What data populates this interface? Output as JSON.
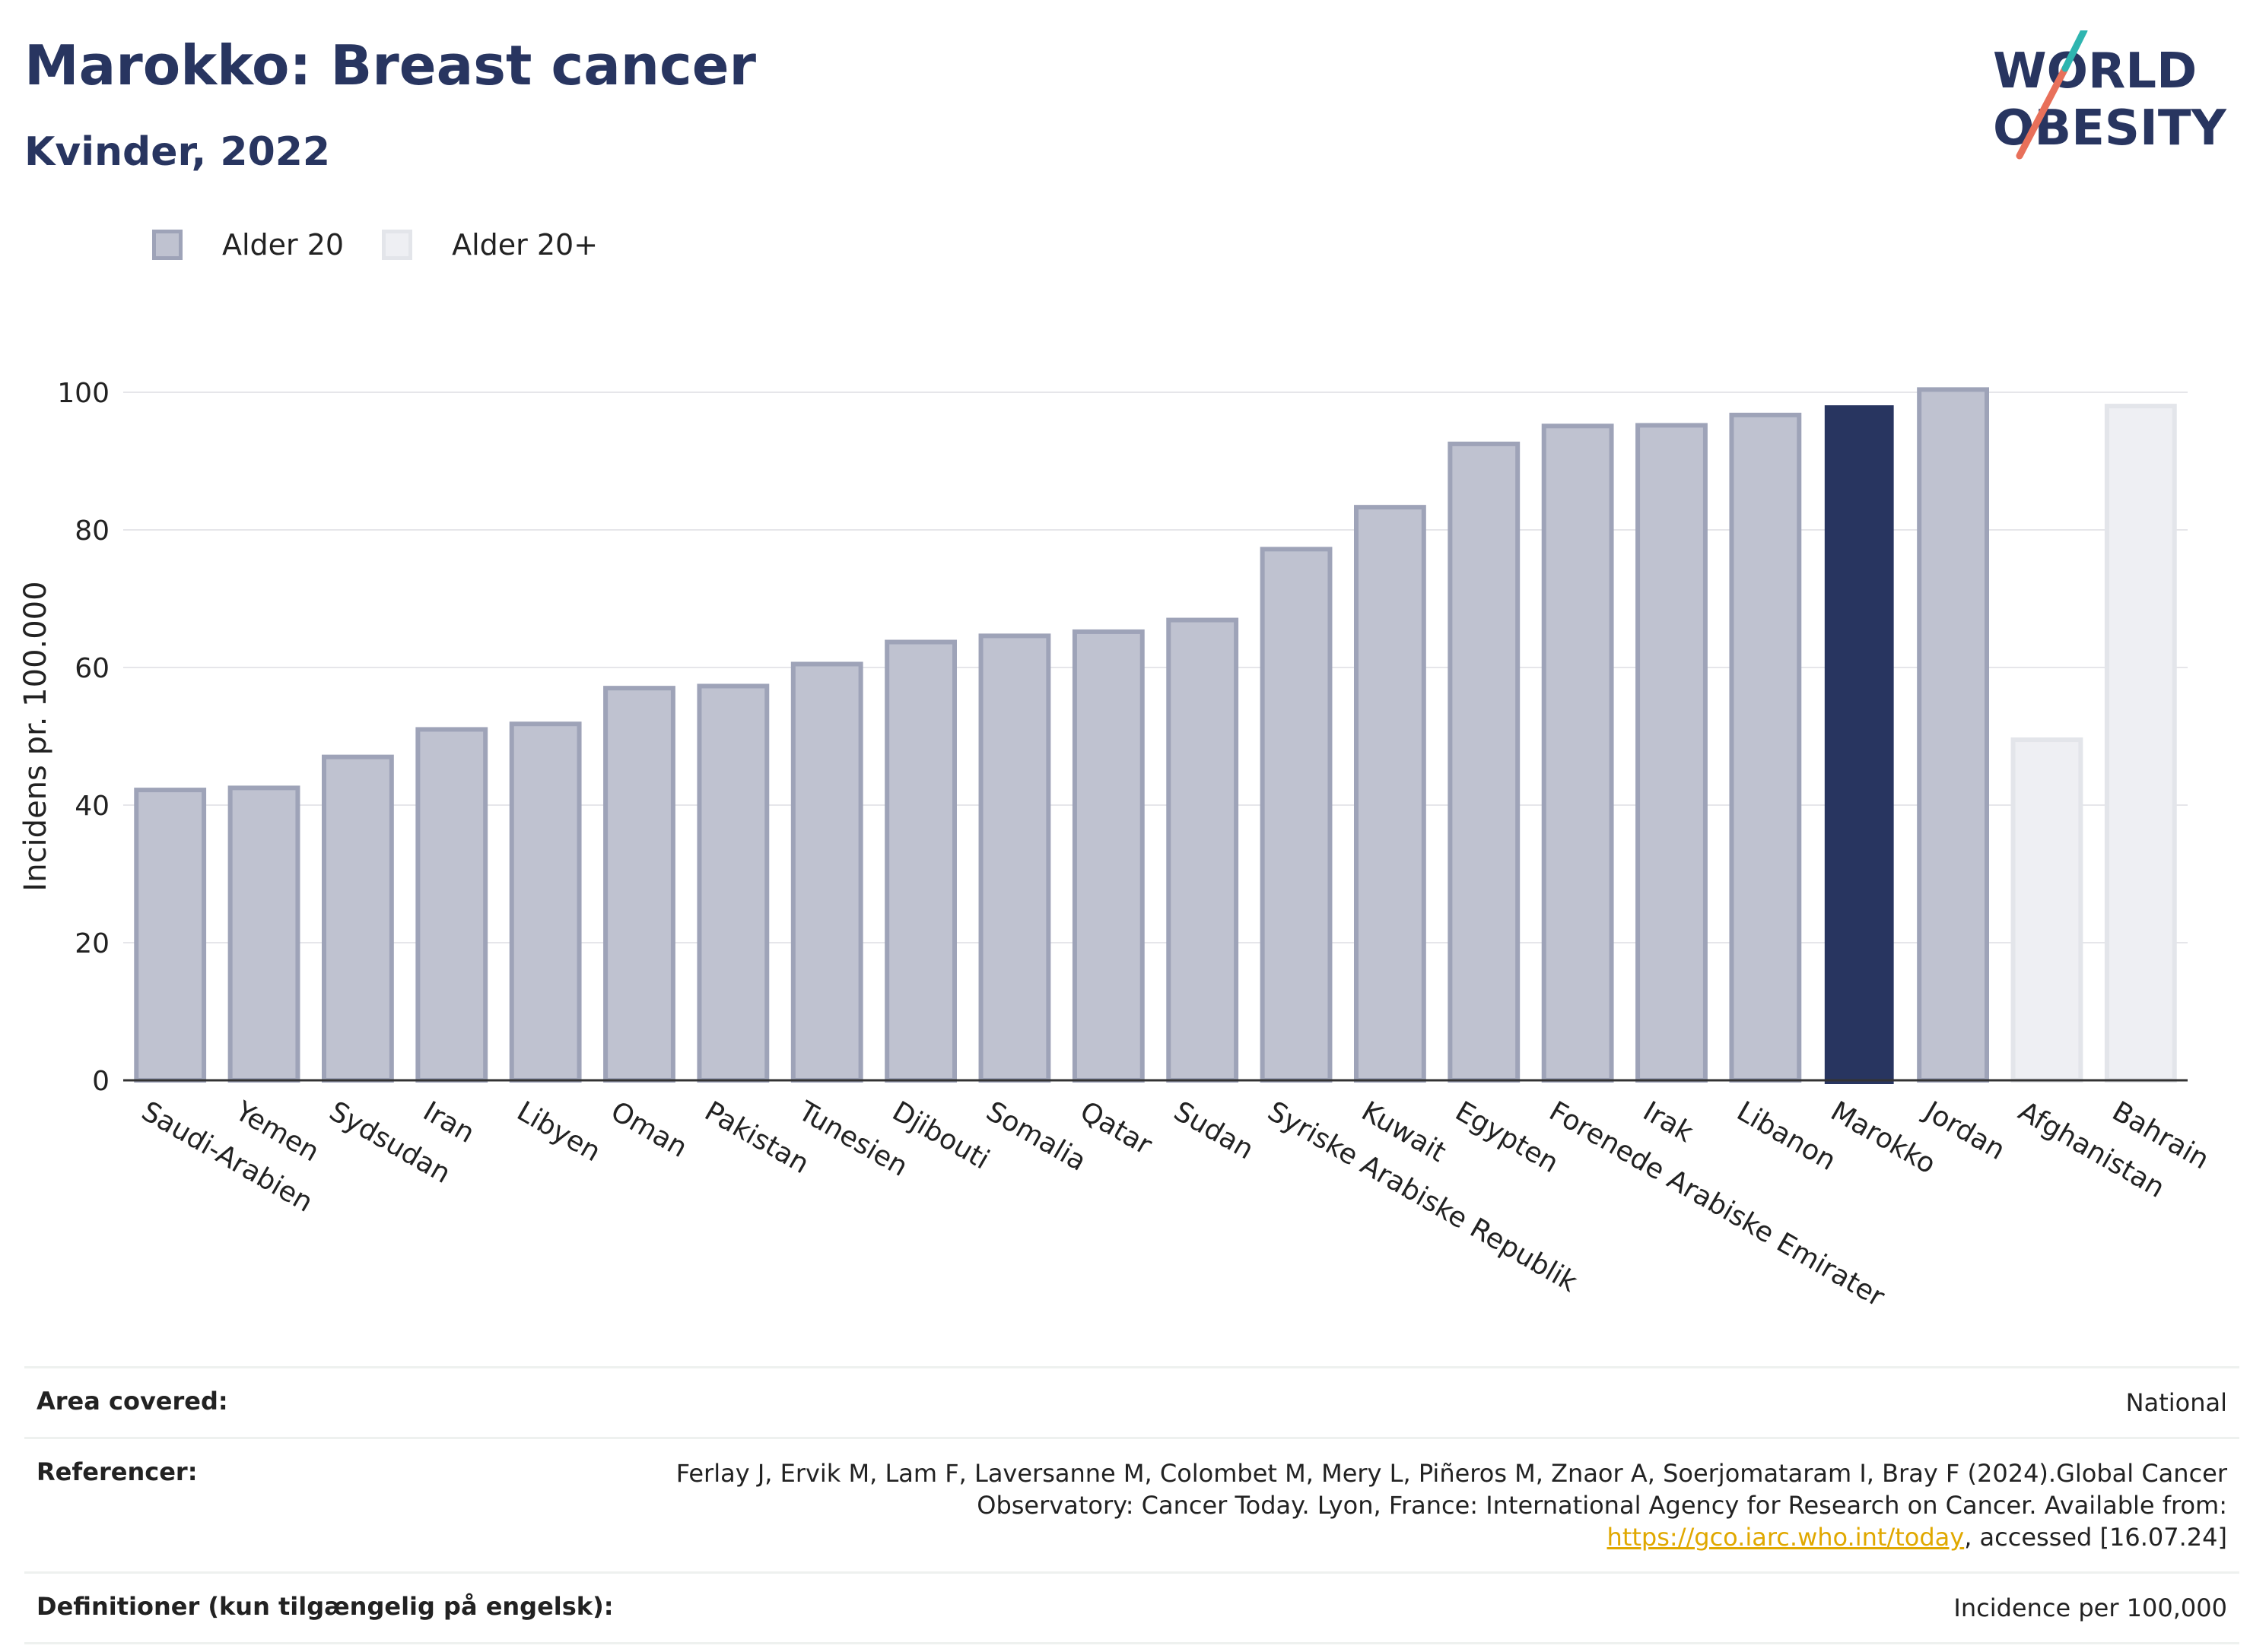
{
  "header": {
    "title": "Marokko: Breast cancer",
    "subtitle": "Kvinder, 2022",
    "logo_line1": "WORLD",
    "logo_line2": "OBESITY"
  },
  "legend": {
    "items": [
      {
        "label": "Alder 20",
        "color": "#bfc2d0"
      },
      {
        "label": "Alder 20+",
        "color": "#eeeff3"
      }
    ]
  },
  "chart_data": {
    "type": "bar",
    "ylabel": "Incidens pr. 100.000",
    "xlabel": "",
    "ylim": [
      0,
      100
    ],
    "yticks": [
      0,
      20,
      40,
      60,
      80,
      100
    ],
    "grid": true,
    "legend_position": "top-left",
    "highlight_color": "#283560",
    "categories": [
      "Saudi-Arabien",
      "Yemen",
      "Sydsudan",
      "Iran",
      "Libyen",
      "Oman",
      "Pakistan",
      "Tunesien",
      "Djibouti",
      "Somalia",
      "Qatar",
      "Sudan",
      "Syriske Arabiske Republik",
      "Kuwait",
      "Egypten",
      "Forenede Arabiske Emirater",
      "Irak",
      "Libanon",
      "Marokko",
      "Jordan",
      "Afghanistan",
      "Bahrain"
    ],
    "values": [
      42.2,
      42.5,
      47.0,
      51.0,
      51.8,
      57.0,
      57.3,
      60.5,
      63.7,
      64.6,
      65.2,
      66.9,
      77.2,
      83.3,
      92.5,
      95.1,
      95.2,
      96.7,
      98.0,
      100.4,
      49.5,
      98.0
    ],
    "series_group": [
      "Alder 20",
      "Alder 20",
      "Alder 20",
      "Alder 20",
      "Alder 20",
      "Alder 20",
      "Alder 20",
      "Alder 20",
      "Alder 20",
      "Alder 20",
      "Alder 20",
      "Alder 20",
      "Alder 20",
      "Alder 20",
      "Alder 20",
      "Alder 20",
      "Alder 20",
      "Alder 20",
      "Alder 20",
      "Alder 20",
      "Alder 20+",
      "Alder 20+"
    ],
    "highlight": "Marokko"
  },
  "info": {
    "area_key": "Area covered:",
    "area_val": "National",
    "ref_key": "Referencer:",
    "ref_text1": "Ferlay J, Ervik M, Lam F, Laversanne M, Colombet M, Mery L, Piñeros M, Znaor A, Soerjomataram I, Bray F (2024).Global Cancer Observatory: Cancer Today. Lyon, France: International Agency for Research on Cancer. Available from: ",
    "ref_link": "https://gco.iarc.who.int/today",
    "ref_text2": ", accessed [16.07.24]",
    "def_key": "Definitioner (kun tilgængelig på engelsk):",
    "def_val": "Incidence per 100,000"
  }
}
